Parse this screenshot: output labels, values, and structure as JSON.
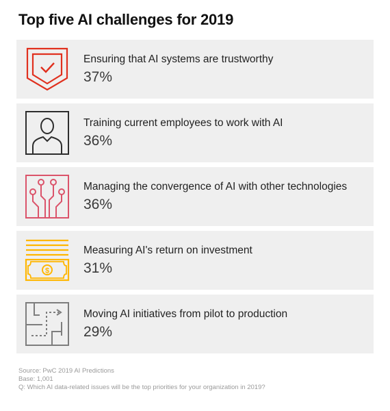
{
  "title": "Top five AI challenges for 2019",
  "items": [
    {
      "icon": "shield-check-icon",
      "color": "#e0301e",
      "label": "Ensuring that AI systems are trustworthy",
      "percent": "37%"
    },
    {
      "icon": "person-icon",
      "color": "#2d2d2d",
      "label": "Training current employees to work with AI",
      "percent": "36%"
    },
    {
      "icon": "circuit-icon",
      "color": "#db536a",
      "label": "Managing the convergence of AI with other technologies",
      "percent": "36%"
    },
    {
      "icon": "money-icon",
      "color": "#ffb600",
      "label": "Measuring AI's return on investment",
      "percent": "31%"
    },
    {
      "icon": "maze-path-icon",
      "color": "#7d7d7d",
      "label": "Moving AI initiatives from pilot to production",
      "percent": "29%"
    }
  ],
  "footnotes": {
    "source": "Source: PwC 2019 AI Predictions",
    "base": "Base: 1,001",
    "question": "Q: Which AI data-related issues will be the top priorities for your organization in 2019?"
  }
}
